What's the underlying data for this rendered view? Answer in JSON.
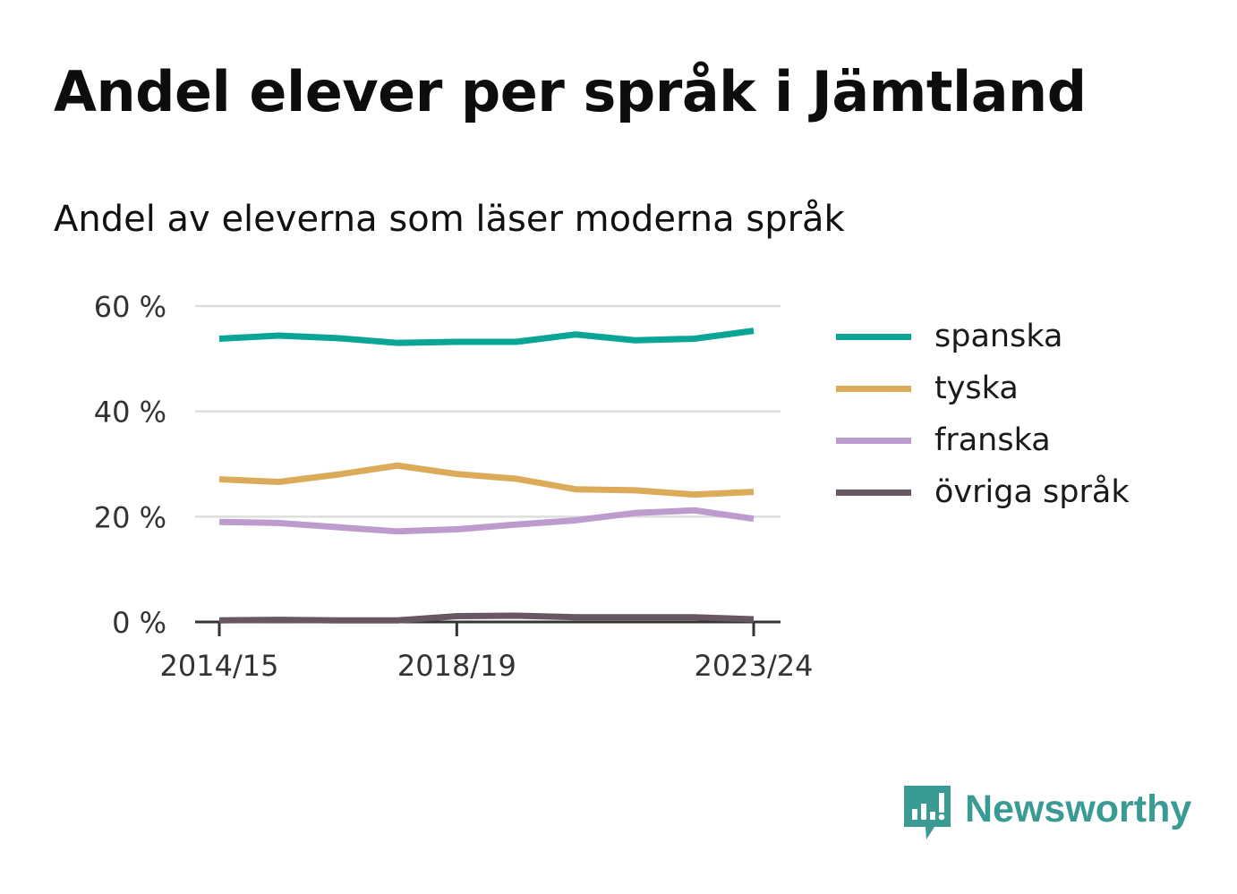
{
  "title": "Andel elever per språk i Jämtland",
  "subtitle": "Andel av eleverna som läser moderna språk",
  "brand": {
    "name": "Newsworthy",
    "color": "#3a9a94",
    "icon": "bar-chart-speech-bubble-icon"
  },
  "chart_data": {
    "type": "line",
    "x": [
      "2014/15",
      "2015/16",
      "2016/17",
      "2017/18",
      "2018/19",
      "2019/20",
      "2020/21",
      "2021/22",
      "2022/23",
      "2023/24"
    ],
    "x_tick_labels": [
      "2014/15",
      "2018/19",
      "2023/24"
    ],
    "ylim": [
      0,
      60
    ],
    "y_ticks": [
      0,
      20,
      40,
      60
    ],
    "y_tick_labels": [
      "0 %",
      "20 %",
      "40 %",
      "60 %"
    ],
    "grid": true,
    "legend_placement": "right",
    "series": [
      {
        "name": "spanska",
        "color": "#0aa596",
        "values": [
          53.8,
          54.4,
          53.9,
          53.0,
          53.2,
          53.2,
          54.6,
          53.5,
          53.8,
          55.3
        ]
      },
      {
        "name": "tyska",
        "color": "#dbab59",
        "values": [
          27.1,
          26.6,
          28.0,
          29.7,
          28.1,
          27.2,
          25.2,
          25.0,
          24.2,
          24.7
        ]
      },
      {
        "name": "franska",
        "color": "#be9bcf",
        "values": [
          19.0,
          18.8,
          18.0,
          17.2,
          17.6,
          18.5,
          19.3,
          20.7,
          21.2,
          19.6
        ]
      },
      {
        "name": "övriga språk",
        "color": "#685762",
        "values": [
          0.3,
          0.4,
          0.3,
          0.3,
          1.1,
          1.2,
          0.9,
          0.9,
          0.9,
          0.5
        ]
      }
    ]
  }
}
